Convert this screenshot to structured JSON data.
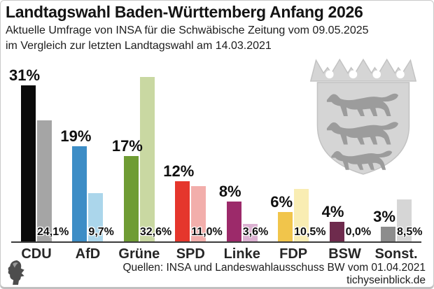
{
  "header": {
    "title": "Landtagswahl Baden-Württemberg Anfang 2026",
    "subtitle_line1": "Aktuelle Umfrage von INSA für die Schwäbische Zeitung vom 09.05.2025",
    "subtitle_line2": "im Vergleich zur letzten Landtagswahl am 14.03.2021"
  },
  "chart_data": {
    "type": "bar",
    "title": "Landtagswahl Baden-Württemberg Anfang 2026",
    "categories": [
      "CDU",
      "AfD",
      "Grüne",
      "SPD",
      "Linke",
      "FDP",
      "BSW",
      "Sonst."
    ],
    "series": [
      {
        "name": "Aktuelle Umfrage INSA vom 09.05.2025",
        "values": [
          31,
          19,
          17,
          12,
          8,
          6,
          4,
          3
        ],
        "labels": [
          "31%",
          "19%",
          "17%",
          "12%",
          "8%",
          "6%",
          "4%",
          "3%"
        ],
        "colors": [
          "#0a0a0a",
          "#3d8dc6",
          "#6f9c34",
          "#e5362c",
          "#9c2a6a",
          "#f1c54b",
          "#6e2b4d",
          "#8d8d8d"
        ]
      },
      {
        "name": "Letzte Landtagswahl vom 14.03.2021",
        "values": [
          24.1,
          9.7,
          32.6,
          11.0,
          3.6,
          10.5,
          0.0,
          8.5
        ],
        "labels": [
          "24,1%",
          "9,7%",
          "32,6%",
          "11,0%",
          "3,6%",
          "10,5%",
          "0,0%",
          "8,5%"
        ],
        "colors": [
          "#a5a5a5",
          "#abd6eb",
          "#c9d8a2",
          "#f2aeab",
          "#dcb1d2",
          "#f9edb3",
          "#ffffff",
          "#d6d6d6"
        ]
      }
    ],
    "ylim": [
      0,
      33
    ],
    "grid": false,
    "legend": "none"
  },
  "footer": {
    "sources": "Quellen: INSA und Landeswahlausschuss BW vom 01.04.2021",
    "website": "tichyseinblick.de"
  },
  "graphics": {
    "coat_of_arms": "baden-wuerttemberg-coat-of-arms",
    "shield_color": "#d5d5d5",
    "lion_color": "#9c9c9c",
    "logo": "tichyseinblick-head-logo",
    "axis_color": "#3c3c3c"
  }
}
